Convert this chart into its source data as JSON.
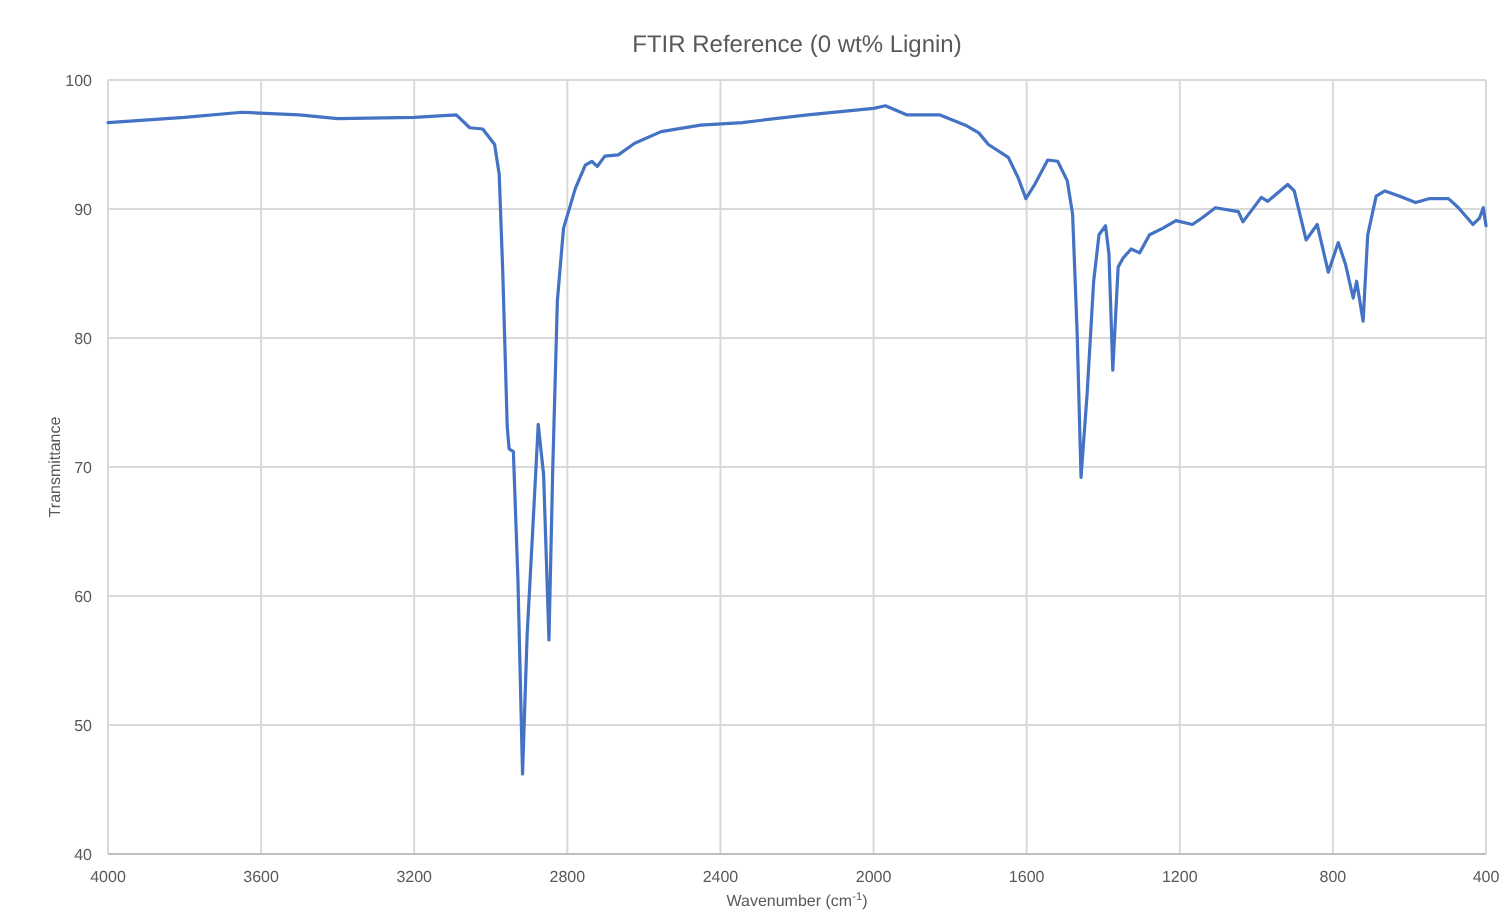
{
  "chart_data": {
    "type": "line",
    "title": "FTIR Reference (0 wt% Lignin)",
    "xlabel": "Wavenumber (cm$^{-1}$)",
    "ylabel": "Transmittance",
    "xlim": [
      4000,
      400
    ],
    "xticks": [
      4000,
      3600,
      3200,
      2800,
      2400,
      2000,
      1600,
      1200,
      800,
      400
    ],
    "ylim": [
      40,
      100
    ],
    "yticks": [
      40,
      50,
      60,
      70,
      80,
      90,
      100
    ],
    "grid": true,
    "series": [
      {
        "color": "#4472c4",
        "x": [
          4000,
          3800,
          3650,
          3500,
          3400,
          3200,
          3090,
          3055,
          3021,
          2990,
          2978,
          2969,
          2957,
          2952,
          2941,
          2929,
          2917,
          2905,
          2891,
          2876,
          2862,
          2848,
          2838,
          2826,
          2810,
          2779,
          2753,
          2736,
          2722,
          2702,
          2667,
          2624,
          2555,
          2452,
          2343,
          2172,
          2000,
          1969,
          1914,
          1828,
          1760,
          1725,
          1700,
          1648,
          1622,
          1602,
          1579,
          1545,
          1519,
          1494,
          1480,
          1468,
          1458,
          1442,
          1425,
          1411,
          1394,
          1385,
          1375,
          1361,
          1348,
          1327,
          1305,
          1279,
          1245,
          1210,
          1167,
          1142,
          1107,
          1047,
          1035,
          987,
          970,
          918,
          901,
          870,
          841,
          812,
          786,
          767,
          747,
          738,
          721,
          709,
          687,
          664,
          627,
          584,
          549,
          498,
          472,
          434,
          417,
          407,
          400
        ],
        "values": [
          96.7,
          97.1,
          97.5,
          97.3,
          97.0,
          97.1,
          97.3,
          96.3,
          96.2,
          95.0,
          92.7,
          85.4,
          73.1,
          71.4,
          71.2,
          61.2,
          46.2,
          57.0,
          64.8,
          73.3,
          69.4,
          56.6,
          70.0,
          82.9,
          88.5,
          91.6,
          93.4,
          93.7,
          93.3,
          94.1,
          94.2,
          95.1,
          96.0,
          96.5,
          96.7,
          97.3,
          97.8,
          98.0,
          97.3,
          97.3,
          96.5,
          95.9,
          95.0,
          94.0,
          92.4,
          90.8,
          91.9,
          93.8,
          93.7,
          92.2,
          89.6,
          80.3,
          69.2,
          75.7,
          84.4,
          88.0,
          88.7,
          86.5,
          77.5,
          85.5,
          86.2,
          86.9,
          86.6,
          88.0,
          88.5,
          89.1,
          88.8,
          89.3,
          90.1,
          89.8,
          89.0,
          90.9,
          90.6,
          91.9,
          91.4,
          87.6,
          88.8,
          85.1,
          87.4,
          85.7,
          83.1,
          84.4,
          81.3,
          88.0,
          91.0,
          91.4,
          91.0,
          90.5,
          90.8,
          90.8,
          90.1,
          88.8,
          89.3,
          90.1,
          88.7
        ]
      }
    ]
  }
}
